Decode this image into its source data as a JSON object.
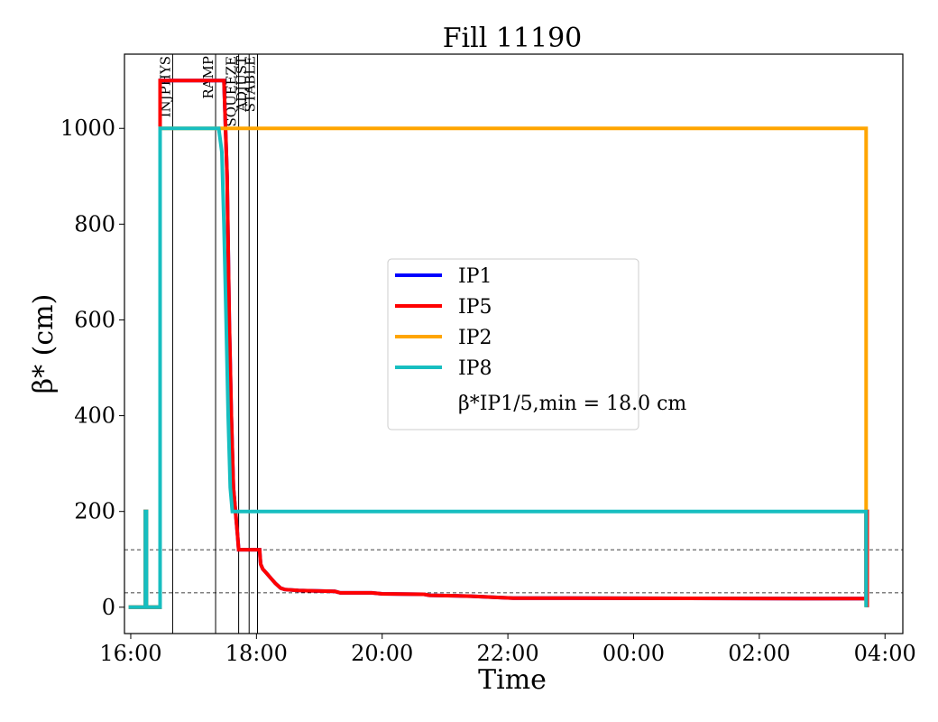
{
  "chart_data": {
    "type": "line",
    "title": "Fill 11190",
    "xlabel": "Time",
    "ylabel": "β* (cm)",
    "xlim": [
      "15:54",
      "04:17"
    ],
    "ylim": [
      -55,
      1155
    ],
    "xticks": [
      "16:00",
      "18:00",
      "20:00",
      "22:00",
      "00:00",
      "02:00",
      "04:00"
    ],
    "yticks": [
      0,
      200,
      400,
      600,
      800,
      1000
    ],
    "legend": {
      "placement": "center",
      "entries": [
        "IP1",
        "IP5",
        "IP2",
        "IP8"
      ],
      "note": "β*IP1/5,min = 18.0 cm"
    },
    "beam_modes": [
      {
        "label": "INJPHYS",
        "time": "16:40"
      },
      {
        "label": "RAMP",
        "time": "17:21"
      },
      {
        "label": "SQUEEZE",
        "time": "17:43"
      },
      {
        "label": "ADJUST",
        "time": "17:53"
      },
      {
        "label": "STABLE",
        "time": "18:01"
      }
    ],
    "reference_lines": [
      120,
      30
    ],
    "series": [
      {
        "name": "IP1",
        "color": "#0000ff",
        "points": [
          [
            "15:58",
            0
          ],
          [
            "16:14",
            0
          ],
          [
            "16:14",
            200
          ],
          [
            "16:15",
            200
          ],
          [
            "16:15",
            0
          ],
          [
            "16:28",
            0
          ],
          [
            "16:28",
            1100
          ],
          [
            "17:29",
            1100
          ],
          [
            "17:32",
            900
          ],
          [
            "17:34",
            600
          ],
          [
            "17:36",
            400
          ],
          [
            "17:38",
            250
          ],
          [
            "17:40",
            200
          ],
          [
            "17:42",
            150
          ],
          [
            "17:43",
            120
          ],
          [
            "17:45",
            120
          ],
          [
            "18:03",
            120
          ],
          [
            "18:04",
            90
          ],
          [
            "18:06",
            80
          ],
          [
            "18:10",
            70
          ],
          [
            "18:14",
            60
          ],
          [
            "18:18",
            50
          ],
          [
            "18:23",
            40
          ],
          [
            "18:27",
            37
          ],
          [
            "18:40",
            35
          ],
          [
            "19:15",
            33
          ],
          [
            "19:20",
            30
          ],
          [
            "19:50",
            30
          ],
          [
            "20:00",
            28
          ],
          [
            "20:40",
            27
          ],
          [
            "20:45",
            25
          ],
          [
            "21:25",
            23
          ],
          [
            "21:55",
            20
          ],
          [
            "22:05",
            19
          ],
          [
            "03:42",
            18
          ],
          [
            "03:42",
            200
          ],
          [
            "03:43",
            200
          ],
          [
            "03:43",
            0
          ]
        ]
      },
      {
        "name": "IP5",
        "color": "#ff0000",
        "points": [
          [
            "15:58",
            0
          ],
          [
            "16:14",
            0
          ],
          [
            "16:14",
            200
          ],
          [
            "16:15",
            200
          ],
          [
            "16:15",
            0
          ],
          [
            "16:28",
            0
          ],
          [
            "16:28",
            1100
          ],
          [
            "17:29",
            1100
          ],
          [
            "17:32",
            900
          ],
          [
            "17:34",
            600
          ],
          [
            "17:36",
            400
          ],
          [
            "17:38",
            250
          ],
          [
            "17:40",
            200
          ],
          [
            "17:42",
            150
          ],
          [
            "17:43",
            120
          ],
          [
            "17:45",
            120
          ],
          [
            "18:03",
            120
          ],
          [
            "18:04",
            90
          ],
          [
            "18:06",
            80
          ],
          [
            "18:10",
            70
          ],
          [
            "18:14",
            60
          ],
          [
            "18:18",
            50
          ],
          [
            "18:23",
            40
          ],
          [
            "18:27",
            37
          ],
          [
            "18:40",
            35
          ],
          [
            "19:15",
            33
          ],
          [
            "19:20",
            30
          ],
          [
            "19:50",
            30
          ],
          [
            "20:00",
            28
          ],
          [
            "20:40",
            27
          ],
          [
            "20:45",
            25
          ],
          [
            "21:25",
            23
          ],
          [
            "21:55",
            20
          ],
          [
            "22:05",
            19
          ],
          [
            "03:42",
            18
          ],
          [
            "03:42",
            200
          ],
          [
            "03:43",
            200
          ],
          [
            "03:43",
            0
          ]
        ]
      },
      {
        "name": "IP2",
        "color": "#ffa500",
        "points": [
          [
            "15:58",
            0
          ],
          [
            "16:14",
            0
          ],
          [
            "16:14",
            200
          ],
          [
            "16:15",
            200
          ],
          [
            "16:15",
            0
          ],
          [
            "16:28",
            0
          ],
          [
            "16:28",
            1000
          ],
          [
            "03:42",
            1000
          ],
          [
            "03:42",
            0
          ]
        ]
      },
      {
        "name": "IP8",
        "color": "#17bec0",
        "points": [
          [
            "15:58",
            0
          ],
          [
            "16:14",
            0
          ],
          [
            "16:14",
            200
          ],
          [
            "16:15",
            200
          ],
          [
            "16:15",
            0
          ],
          [
            "16:28",
            0
          ],
          [
            "16:28",
            1000
          ],
          [
            "17:24",
            1000
          ],
          [
            "17:27",
            950
          ],
          [
            "17:29",
            800
          ],
          [
            "17:31",
            600
          ],
          [
            "17:33",
            400
          ],
          [
            "17:35",
            250
          ],
          [
            "17:37",
            200
          ],
          [
            "03:42",
            200
          ],
          [
            "03:42",
            0
          ]
        ]
      }
    ]
  }
}
